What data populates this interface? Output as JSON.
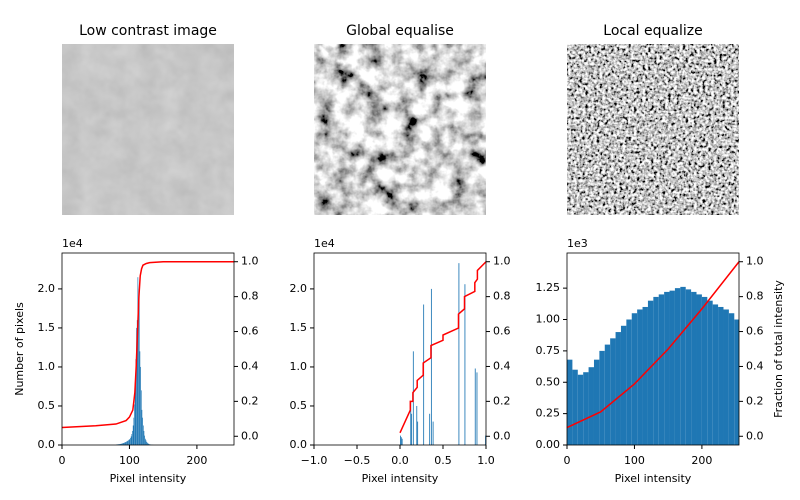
{
  "chart_data": [
    {
      "type": "image",
      "title": "Low contrast image",
      "contrast": "low"
    },
    {
      "type": "image",
      "title": "Global equalise",
      "contrast": "global"
    },
    {
      "type": "image",
      "title": "Local equalize",
      "contrast": "local"
    },
    {
      "type": "histogram",
      "xlabel": "Pixel intensity",
      "ylabel": "Number of pixels",
      "y_offset_label": "1e4",
      "xlim": [
        0,
        255
      ],
      "xticks": [
        0,
        100,
        200
      ],
      "ylim": [
        0,
        24600
      ],
      "yticks": [
        {
          "value": 0,
          "label": "0.0"
        },
        {
          "value": 5000,
          "label": "0.5"
        },
        {
          "value": 10000,
          "label": "1.0"
        },
        {
          "value": 15000,
          "label": "1.5"
        },
        {
          "value": 20000,
          "label": "2.0"
        }
      ],
      "y2lim": [
        -0.05,
        1.05
      ],
      "y2ticks": [
        {
          "value": 0,
          "label": "0.0"
        },
        0.2,
        0.4,
        0.6,
        0.8,
        {
          "value": 1,
          "label": "1.0"
        }
      ],
      "color": "#1f77b4",
      "bins": [
        80,
        81,
        82,
        83,
        84,
        85,
        86,
        87,
        88,
        89,
        90,
        91,
        92,
        93,
        94,
        95,
        96,
        97,
        98,
        99,
        100,
        101,
        102,
        103,
        104,
        105,
        106,
        107,
        108,
        109,
        110,
        111,
        112,
        113,
        114,
        115,
        116,
        117,
        118,
        119,
        120,
        121,
        122,
        123,
        124,
        125,
        126,
        127,
        128,
        129,
        130,
        131,
        132,
        133,
        134,
        135,
        136
      ],
      "counts": [
        60,
        70,
        80,
        90,
        100,
        110,
        130,
        150,
        170,
        200,
        230,
        260,
        300,
        340,
        380,
        430,
        480,
        540,
        600,
        680,
        750,
        900,
        1100,
        1400,
        1800,
        2500,
        3500,
        5200,
        8000,
        11000,
        15000,
        16000,
        21500,
        17500,
        20000,
        12000,
        10000,
        7000,
        4500,
        3500,
        2500,
        1800,
        1200,
        800,
        600,
        400,
        300,
        200,
        150,
        100,
        80,
        60,
        40,
        30,
        20,
        10
      ],
      "cdf": {
        "axis": "y2",
        "color": "#ff0000",
        "x": [
          0,
          50,
          80,
          95,
          100,
          105,
          108,
          110,
          112,
          114,
          116,
          118,
          120,
          125,
          130,
          150,
          200,
          255
        ],
        "values": [
          0.05,
          0.06,
          0.07,
          0.09,
          0.11,
          0.15,
          0.25,
          0.4,
          0.6,
          0.8,
          0.92,
          0.96,
          0.98,
          0.99,
          0.995,
          1.0,
          1.0,
          1.0
        ]
      }
    },
    {
      "type": "histogram",
      "xlabel": "Pixel intensity",
      "y_offset_label": "1e4",
      "xlim": [
        -1,
        1
      ],
      "xticks": [
        {
          "value": -1,
          "label": "−1.0"
        },
        {
          "value": -0.5,
          "label": "−0.5"
        },
        {
          "value": 0,
          "label": "0.0"
        },
        0.5,
        {
          "value": 1,
          "label": "1.0"
        }
      ],
      "ylim": [
        0,
        24600
      ],
      "yticks": [
        {
          "value": 0,
          "label": "0.0"
        },
        {
          "value": 5000,
          "label": "0.5"
        },
        {
          "value": 10000,
          "label": "1.0"
        },
        {
          "value": 15000,
          "label": "1.5"
        },
        {
          "value": 20000,
          "label": "2.0"
        }
      ],
      "y2lim": [
        -0.05,
        1.05
      ],
      "y2ticks": [
        {
          "value": 0,
          "label": "0.0"
        },
        0.2,
        0.4,
        0.6,
        0.8,
        {
          "value": 1,
          "label": "1.0"
        }
      ],
      "color": "#1f77b4",
      "bins": [
        0,
        0.01,
        0.02,
        0.03,
        0.04,
        0.05,
        0.06,
        0.07,
        0.08,
        0.09,
        0.1,
        0.11,
        0.12,
        0.13,
        0.14,
        0.15,
        0.16,
        0.17,
        0.18,
        0.19,
        0.2,
        0.21,
        0.22,
        0.23,
        0.24,
        0.25,
        0.26,
        0.27,
        0.28,
        0.29,
        0.3,
        0.31,
        0.32,
        0.33,
        0.34,
        0.35,
        0.36,
        0.37,
        0.38,
        0.39,
        0.4,
        0.41,
        0.42,
        0.43,
        0.44,
        0.45,
        0.46,
        0.47,
        0.48,
        0.49,
        0.5,
        0.51,
        0.52,
        0.53,
        0.54,
        0.55,
        0.56,
        0.57,
        0.58,
        0.59,
        0.6,
        0.61,
        0.62,
        0.63,
        0.64,
        0.65,
        0.66,
        0.67,
        0.68,
        0.69,
        0.7,
        0.71,
        0.72,
        0.73,
        0.74,
        0.75,
        0.76,
        0.77,
        0.78,
        0.79,
        0.8,
        0.81,
        0.82,
        0.83,
        0.84,
        0.85,
        0.86,
        0.87,
        0.88,
        0.89,
        0.9,
        0.91,
        0.92,
        0.93,
        0.94,
        0.95,
        0.96,
        0.97,
        0.98,
        0.99,
        1.0
      ],
      "counts": [
        1200,
        1000,
        800,
        0,
        0,
        0,
        0,
        0,
        0,
        0,
        0,
        0,
        5500,
        4000,
        0,
        12000,
        0,
        0,
        0,
        5000,
        3000,
        0,
        0,
        0,
        0,
        0,
        0,
        18000,
        0,
        0,
        0,
        0,
        0,
        0,
        4000,
        0,
        20000,
        0,
        3000,
        0,
        0,
        0,
        0,
        0,
        0,
        0,
        0,
        0,
        0,
        0,
        0,
        0,
        0,
        0,
        0,
        0,
        0,
        0,
        0,
        0,
        0,
        0,
        0,
        0,
        0,
        0,
        0,
        0,
        23300,
        0,
        0,
        0,
        0,
        0,
        0,
        20600,
        0,
        0,
        0,
        0,
        0,
        0,
        0,
        0,
        0,
        0,
        0,
        9800,
        0,
        9300,
        0,
        0,
        0,
        0,
        0,
        0,
        0,
        0,
        0,
        1200
      ],
      "cdf": {
        "axis": "y2",
        "color": "#ff0000",
        "x": [
          0,
          0.12,
          0.12,
          0.15,
          0.15,
          0.2,
          0.2,
          0.27,
          0.27,
          0.36,
          0.36,
          0.5,
          0.5,
          0.68,
          0.68,
          0.75,
          0.75,
          0.87,
          0.87,
          0.9,
          0.9,
          1.0
        ],
        "values": [
          0.02,
          0.15,
          0.2,
          0.2,
          0.25,
          0.28,
          0.32,
          0.35,
          0.42,
          0.45,
          0.52,
          0.55,
          0.58,
          0.62,
          0.7,
          0.73,
          0.8,
          0.83,
          0.88,
          0.9,
          0.95,
          1.0
        ]
      }
    },
    {
      "type": "histogram",
      "xlabel": "Pixel intensity",
      "y2label": "Fraction of total intensity",
      "y_offset_label": "1e3",
      "xlim": [
        0,
        255
      ],
      "xticks": [
        0,
        100,
        200
      ],
      "ylim": [
        0,
        1530
      ],
      "yticks": [
        {
          "value": 0,
          "label": "0.00"
        },
        {
          "value": 250,
          "label": "0.25"
        },
        {
          "value": 500,
          "label": "0.50"
        },
        {
          "value": 750,
          "label": "0.75"
        },
        {
          "value": 1000,
          "label": "1.00"
        },
        {
          "value": 1250,
          "label": "1.25"
        }
      ],
      "y2lim": [
        -0.05,
        1.05
      ],
      "y2ticks": [
        {
          "value": 0,
          "label": "0.0"
        },
        0.2,
        0.4,
        0.6,
        0.8,
        {
          "value": 1,
          "label": "1.0"
        }
      ],
      "color": "#1f77b4",
      "bins": [
        0,
        8,
        16,
        24,
        32,
        40,
        48,
        56,
        64,
        72,
        80,
        88,
        96,
        104,
        112,
        120,
        128,
        136,
        144,
        152,
        160,
        168,
        176,
        184,
        192,
        200,
        208,
        216,
        224,
        232,
        240,
        248,
        255
      ],
      "counts": [
        680,
        600,
        560,
        580,
        620,
        680,
        750,
        800,
        850,
        900,
        950,
        1000,
        1050,
        1080,
        1100,
        1150,
        1180,
        1200,
        1220,
        1230,
        1250,
        1260,
        1240,
        1220,
        1200,
        1180,
        1150,
        1120,
        1100,
        1080,
        1050,
        1000
      ],
      "cdf": {
        "axis": "y2",
        "color": "#ff0000",
        "x": [
          0,
          50,
          100,
          150,
          200,
          255
        ],
        "values": [
          0.05,
          0.14,
          0.3,
          0.5,
          0.73,
          1.0
        ]
      }
    }
  ]
}
